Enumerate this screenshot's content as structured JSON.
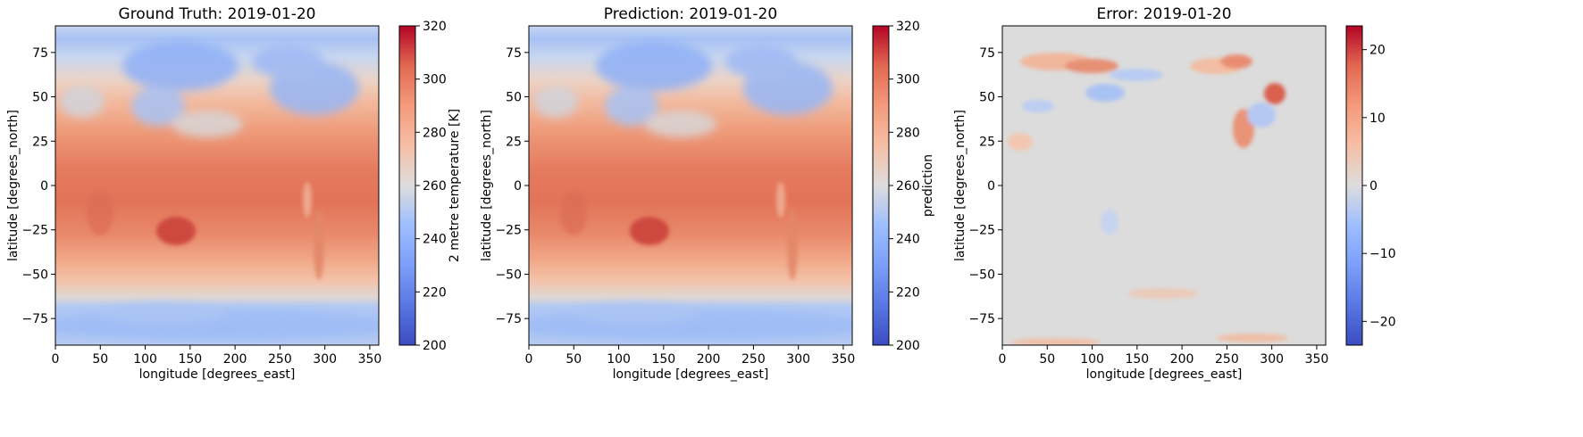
{
  "figure": {
    "background": "#ffffff"
  },
  "chart_data": [
    {
      "type": "heatmap",
      "title": "Ground Truth: 2019-01-20",
      "xlabel": "longitude [degrees_east]",
      "ylabel": "latitude [degrees_north]",
      "xlim": [
        0,
        360
      ],
      "ylim": [
        -90,
        90
      ],
      "x_ticks": [
        0,
        50,
        100,
        150,
        200,
        250,
        300,
        350
      ],
      "y_ticks": [
        -75,
        -50,
        -25,
        0,
        25,
        50,
        75
      ],
      "colormap": "coolwarm",
      "colorbar": {
        "label": "2 metre temperature [K]",
        "min": 200,
        "max": 320,
        "ticks": [
          200,
          220,
          240,
          260,
          280,
          300,
          320
        ]
      }
    },
    {
      "type": "heatmap",
      "title": "Prediction: 2019-01-20",
      "xlabel": "longitude [degrees_east]",
      "ylabel": "latitude [degrees_north]",
      "xlim": [
        0,
        360
      ],
      "ylim": [
        -90,
        90
      ],
      "x_ticks": [
        0,
        50,
        100,
        150,
        200,
        250,
        300,
        350
      ],
      "y_ticks": [
        -75,
        -50,
        -25,
        0,
        25,
        50,
        75
      ],
      "colormap": "coolwarm",
      "colorbar": {
        "label": "prediction",
        "min": 200,
        "max": 320,
        "ticks": [
          200,
          220,
          240,
          260,
          280,
          300,
          320
        ]
      }
    },
    {
      "type": "heatmap",
      "title": "Error: 2019-01-20",
      "xlabel": "longitude [degrees_east]",
      "ylabel": "latitude [degrees_north]",
      "xlim": [
        0,
        360
      ],
      "ylim": [
        -90,
        90
      ],
      "x_ticks": [
        0,
        50,
        100,
        150,
        200,
        250,
        300,
        350
      ],
      "y_ticks": [
        -75,
        -50,
        -25,
        0,
        25,
        50,
        75
      ],
      "colormap": "coolwarm",
      "colorbar": {
        "label": "",
        "min": -23.5,
        "max": 23.5,
        "ticks": [
          -20,
          -10,
          0,
          10,
          20
        ]
      }
    }
  ]
}
